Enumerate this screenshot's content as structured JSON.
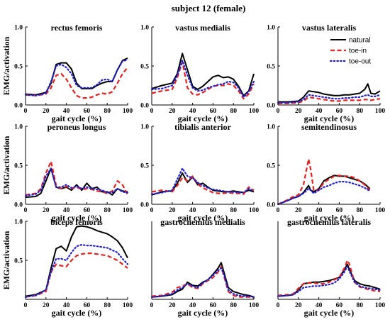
{
  "title": "subject 12 (female)",
  "xlabel": "gait cycle (%)",
  "ylabel": "EMG/activation",
  "colors": {
    "natural": "#000000",
    "toe_in": "#e8211f",
    "toe_out": "#1f1fd6"
  },
  "legend": {
    "position": "top-right of vastus lateralis panel"
  },
  "chart_data": [
    {
      "type": "line",
      "title": "rectus femoris",
      "xlim": [
        0,
        100
      ],
      "ylim": [
        0,
        1
      ],
      "xticks": [
        "0",
        "20",
        "40",
        "60",
        "80",
        "100"
      ],
      "yticks": [
        "0.0",
        "0.5",
        "1.0"
      ],
      "x": [
        0,
        10,
        20,
        25,
        30,
        35,
        40,
        45,
        50,
        55,
        60,
        65,
        70,
        75,
        80,
        85,
        90,
        95,
        100
      ],
      "series": [
        {
          "name": "natural",
          "style": "solid",
          "values": [
            0.14,
            0.13,
            0.16,
            0.28,
            0.52,
            0.54,
            0.54,
            0.46,
            0.28,
            0.21,
            0.21,
            0.21,
            0.25,
            0.28,
            0.3,
            0.3,
            0.45,
            0.57,
            0.6
          ]
        },
        {
          "name": "toe-in",
          "style": "dashed",
          "values": [
            0.13,
            0.12,
            0.14,
            0.22,
            0.38,
            0.4,
            0.33,
            0.22,
            0.12,
            0.09,
            0.09,
            0.1,
            0.13,
            0.15,
            0.14,
            0.17,
            0.28,
            0.4,
            0.48
          ]
        },
        {
          "name": "toe-out",
          "style": "dotted",
          "values": [
            0.13,
            0.12,
            0.15,
            0.3,
            0.5,
            0.52,
            0.48,
            0.4,
            0.25,
            0.22,
            0.22,
            0.22,
            0.26,
            0.32,
            0.33,
            0.3,
            0.45,
            0.56,
            0.58
          ]
        }
      ]
    },
    {
      "type": "line",
      "title": "vastus medialis",
      "xlim": [
        0,
        100
      ],
      "ylim": [
        0,
        1
      ],
      "xticks": [
        "0",
        "20",
        "40",
        "60",
        "80",
        "100"
      ],
      "yticks": [
        "0.0",
        "0.5",
        "1.0"
      ],
      "x": [
        0,
        10,
        20,
        25,
        30,
        35,
        40,
        45,
        50,
        55,
        60,
        65,
        70,
        75,
        80,
        85,
        90,
        95,
        100
      ],
      "series": [
        {
          "name": "natural",
          "style": "solid",
          "values": [
            0.21,
            0.25,
            0.28,
            0.4,
            0.66,
            0.45,
            0.24,
            0.2,
            0.24,
            0.3,
            0.36,
            0.38,
            0.35,
            0.36,
            0.33,
            0.24,
            0.12,
            0.18,
            0.4
          ]
        },
        {
          "name": "toe-in",
          "style": "dashed",
          "values": [
            0.15,
            0.18,
            0.2,
            0.35,
            0.55,
            0.22,
            0.14,
            0.13,
            0.16,
            0.2,
            0.24,
            0.25,
            0.25,
            0.27,
            0.25,
            0.18,
            0.08,
            0.14,
            0.27
          ]
        },
        {
          "name": "toe-out",
          "style": "dotted",
          "values": [
            0.2,
            0.21,
            0.25,
            0.38,
            0.57,
            0.38,
            0.22,
            0.18,
            0.19,
            0.22,
            0.24,
            0.26,
            0.27,
            0.3,
            0.29,
            0.22,
            0.1,
            0.17,
            0.3
          ]
        }
      ]
    },
    {
      "type": "line",
      "title": "vastus lateralis",
      "xlim": [
        0,
        100
      ],
      "ylim": [
        0,
        1
      ],
      "xticks": [
        "0",
        "20",
        "40",
        "60",
        "80",
        "100"
      ],
      "yticks": [
        "0.0",
        "0.5",
        "1.0"
      ],
      "x": [
        0,
        10,
        20,
        25,
        30,
        35,
        40,
        45,
        50,
        55,
        60,
        65,
        70,
        75,
        80,
        85,
        88,
        91,
        95,
        100
      ],
      "series": [
        {
          "name": "natural",
          "style": "solid",
          "values": [
            0.04,
            0.04,
            0.05,
            0.1,
            0.18,
            0.17,
            0.16,
            0.14,
            0.13,
            0.12,
            0.12,
            0.13,
            0.13,
            0.14,
            0.15,
            0.2,
            0.27,
            0.15,
            0.14,
            0.18
          ]
        },
        {
          "name": "toe-in",
          "style": "dashed",
          "values": [
            0.02,
            0.02,
            0.03,
            0.05,
            0.1,
            0.09,
            0.08,
            0.07,
            0.06,
            0.05,
            0.05,
            0.06,
            0.06,
            0.06,
            0.06,
            0.07,
            0.07,
            0.06,
            0.07,
            0.08
          ]
        },
        {
          "name": "toe-out",
          "style": "dotted",
          "values": [
            0.03,
            0.03,
            0.04,
            0.07,
            0.13,
            0.12,
            0.11,
            0.1,
            0.09,
            0.08,
            0.08,
            0.09,
            0.09,
            0.1,
            0.1,
            0.12,
            0.13,
            0.11,
            0.11,
            0.13
          ]
        }
      ]
    },
    {
      "type": "line",
      "title": "peroneus longus",
      "xlim": [
        0,
        100
      ],
      "ylim": [
        0,
        1
      ],
      "xticks": [
        "0",
        "20",
        "40",
        "60",
        "80",
        "100"
      ],
      "yticks": [
        "0.0",
        "0.5",
        "1.0"
      ],
      "x": [
        0,
        10,
        15,
        20,
        25,
        30,
        35,
        40,
        45,
        50,
        55,
        60,
        65,
        70,
        75,
        80,
        85,
        90,
        95,
        100
      ],
      "series": [
        {
          "name": "natural",
          "style": "solid",
          "values": [
            0.09,
            0.1,
            0.14,
            0.3,
            0.46,
            0.22,
            0.2,
            0.22,
            0.18,
            0.25,
            0.18,
            0.27,
            0.2,
            0.22,
            0.16,
            0.16,
            0.12,
            0.2,
            0.17,
            0.16
          ]
        },
        {
          "name": "toe-in",
          "style": "dashed",
          "values": [
            0.12,
            0.14,
            0.2,
            0.4,
            0.55,
            0.24,
            0.2,
            0.23,
            0.2,
            0.22,
            0.19,
            0.2,
            0.19,
            0.17,
            0.16,
            0.14,
            0.17,
            0.3,
            0.25,
            0.12
          ]
        },
        {
          "name": "toe-out",
          "style": "dotted",
          "values": [
            0.11,
            0.13,
            0.18,
            0.36,
            0.46,
            0.22,
            0.22,
            0.25,
            0.21,
            0.23,
            0.2,
            0.22,
            0.2,
            0.19,
            0.18,
            0.15,
            0.15,
            0.2,
            0.16,
            0.15
          ]
        }
      ]
    },
    {
      "type": "line",
      "title": "tibialis anterior",
      "xlim": [
        0,
        100
      ],
      "ylim": [
        0,
        1
      ],
      "xticks": [
        "0",
        "20",
        "40",
        "60",
        "80",
        "100"
      ],
      "yticks": [
        "0.0",
        "0.5",
        "1.0"
      ],
      "x": [
        0,
        10,
        20,
        25,
        30,
        35,
        40,
        45,
        50,
        55,
        60,
        65,
        70,
        75,
        80,
        85,
        90,
        95,
        100
      ],
      "series": [
        {
          "name": "natural",
          "style": "solid",
          "values": [
            0.12,
            0.16,
            0.17,
            0.27,
            0.4,
            0.28,
            0.35,
            0.25,
            0.27,
            0.22,
            0.18,
            0.17,
            0.16,
            0.16,
            0.17,
            0.16,
            0.15,
            0.18,
            0.16
          ]
        },
        {
          "name": "toe-in",
          "style": "dashed",
          "values": [
            0.16,
            0.18,
            0.16,
            0.24,
            0.34,
            0.3,
            0.36,
            0.26,
            0.21,
            0.18,
            0.15,
            0.14,
            0.14,
            0.15,
            0.14,
            0.14,
            0.13,
            0.22,
            0.18
          ]
        },
        {
          "name": "toe-out",
          "style": "dotted",
          "values": [
            0.13,
            0.15,
            0.18,
            0.32,
            0.46,
            0.36,
            0.34,
            0.28,
            0.24,
            0.21,
            0.19,
            0.18,
            0.17,
            0.16,
            0.16,
            0.15,
            0.15,
            0.2,
            0.17
          ]
        }
      ]
    },
    {
      "type": "line",
      "title": "semitendinosus",
      "xlim": [
        0,
        100
      ],
      "ylim": [
        0,
        1
      ],
      "xticks": [
        "0",
        "20",
        "40",
        "60",
        "80",
        "100"
      ],
      "yticks": [
        "0.0",
        "0.5",
        "1.0"
      ],
      "x": [
        0,
        10,
        15,
        20,
        25,
        30,
        32,
        35,
        40,
        45,
        50,
        55,
        60,
        65,
        70,
        75,
        80,
        85,
        90
      ],
      "series": [
        {
          "name": "natural",
          "style": "solid",
          "values": [
            0.0,
            0.05,
            0.08,
            0.1,
            0.15,
            0.24,
            0.18,
            0.16,
            0.2,
            0.3,
            0.34,
            0.37,
            0.36,
            0.36,
            0.34,
            0.32,
            0.3,
            0.26,
            0.2
          ]
        },
        {
          "name": "toe-in",
          "style": "dashed",
          "values": [
            0.0,
            0.06,
            0.1,
            0.12,
            0.25,
            0.58,
            0.45,
            0.18,
            0.18,
            0.28,
            0.32,
            0.36,
            0.37,
            0.36,
            0.36,
            0.34,
            0.3,
            0.25,
            0.18
          ]
        },
        {
          "name": "toe-out",
          "style": "dotted",
          "values": [
            0.0,
            0.05,
            0.08,
            0.1,
            0.14,
            0.2,
            0.18,
            0.14,
            0.18,
            0.22,
            0.24,
            0.27,
            0.29,
            0.29,
            0.28,
            0.26,
            0.24,
            0.21,
            0.17
          ]
        }
      ]
    },
    {
      "type": "line",
      "title": "biceps femoris",
      "xlim": [
        0,
        100
      ],
      "ylim": [
        0,
        1
      ],
      "xticks": [
        "0",
        "20",
        "40",
        "60",
        "80",
        "100"
      ],
      "yticks": [
        "0.5",
        "1.0"
      ],
      "x": [
        0,
        10,
        20,
        25,
        30,
        35,
        40,
        45,
        50,
        55,
        60,
        65,
        70,
        75,
        80,
        85,
        90,
        95,
        100
      ],
      "series": [
        {
          "name": "natural",
          "style": "solid",
          "values": [
            0.04,
            0.06,
            0.12,
            0.4,
            0.65,
            0.68,
            0.62,
            0.8,
            0.93,
            0.94,
            0.93,
            0.91,
            0.88,
            0.86,
            0.84,
            0.8,
            0.75,
            0.66,
            0.53
          ]
        },
        {
          "name": "toe-in",
          "style": "dashed",
          "values": [
            0.03,
            0.05,
            0.1,
            0.35,
            0.45,
            0.43,
            0.42,
            0.5,
            0.56,
            0.58,
            0.59,
            0.59,
            0.58,
            0.57,
            0.56,
            0.53,
            0.5,
            0.45,
            0.4
          ]
        },
        {
          "name": "toe-out",
          "style": "dotted",
          "values": [
            0.03,
            0.05,
            0.12,
            0.35,
            0.52,
            0.52,
            0.5,
            0.6,
            0.68,
            0.7,
            0.69,
            0.69,
            0.68,
            0.67,
            0.66,
            0.63,
            0.6,
            0.52,
            0.45
          ]
        }
      ]
    },
    {
      "type": "line",
      "title": "gastrocnemius medialis",
      "xlim": [
        0,
        100
      ],
      "ylim": [
        0,
        1
      ],
      "xticks": [
        "0",
        "20",
        "40",
        "60",
        "80",
        "100"
      ],
      "yticks": [],
      "x": [
        0,
        10,
        20,
        25,
        30,
        35,
        40,
        45,
        50,
        55,
        60,
        65,
        68,
        70,
        75,
        80,
        85,
        90,
        95,
        100
      ],
      "series": [
        {
          "name": "natural",
          "style": "solid",
          "values": [
            0.03,
            0.04,
            0.06,
            0.1,
            0.13,
            0.22,
            0.18,
            0.17,
            0.22,
            0.25,
            0.32,
            0.4,
            0.47,
            0.38,
            0.15,
            0.1,
            0.08,
            0.06,
            0.05,
            0.03
          ]
        },
        {
          "name": "toe-in",
          "style": "dashed",
          "values": [
            0.04,
            0.05,
            0.09,
            0.15,
            0.17,
            0.2,
            0.15,
            0.14,
            0.2,
            0.24,
            0.28,
            0.35,
            0.42,
            0.33,
            0.1,
            0.05,
            0.03,
            0.03,
            0.03,
            0.02
          ]
        },
        {
          "name": "toe-out",
          "style": "dotted",
          "values": [
            0.03,
            0.04,
            0.07,
            0.12,
            0.15,
            0.2,
            0.17,
            0.15,
            0.21,
            0.25,
            0.31,
            0.37,
            0.4,
            0.34,
            0.12,
            0.07,
            0.05,
            0.04,
            0.04,
            0.03
          ]
        }
      ]
    },
    {
      "type": "line",
      "title": "gastrocnemius lateralis",
      "xlim": [
        0,
        100
      ],
      "ylim": [
        0,
        1
      ],
      "xticks": [
        "0",
        "20",
        "40",
        "60",
        "80",
        "100"
      ],
      "yticks": [],
      "x": [
        0,
        10,
        15,
        20,
        25,
        30,
        35,
        40,
        45,
        50,
        55,
        60,
        65,
        68,
        70,
        75,
        80,
        85,
        90,
        95,
        100
      ],
      "series": [
        {
          "name": "natural",
          "style": "solid",
          "values": [
            0.04,
            0.05,
            0.06,
            0.12,
            0.2,
            0.21,
            0.22,
            0.22,
            0.23,
            0.24,
            0.26,
            0.28,
            0.38,
            0.45,
            0.38,
            0.24,
            0.2,
            0.18,
            0.17,
            0.15,
            0.13
          ]
        },
        {
          "name": "toe-in",
          "style": "dashed",
          "values": [
            0.05,
            0.06,
            0.07,
            0.14,
            0.2,
            0.21,
            0.21,
            0.2,
            0.2,
            0.22,
            0.25,
            0.28,
            0.4,
            0.5,
            0.45,
            0.22,
            0.16,
            0.14,
            0.12,
            0.11,
            0.1
          ]
        },
        {
          "name": "toe-out",
          "style": "dotted",
          "values": [
            0.04,
            0.05,
            0.06,
            0.1,
            0.15,
            0.16,
            0.17,
            0.17,
            0.18,
            0.19,
            0.21,
            0.26,
            0.35,
            0.42,
            0.36,
            0.22,
            0.17,
            0.15,
            0.14,
            0.13,
            0.12
          ]
        }
      ]
    }
  ]
}
